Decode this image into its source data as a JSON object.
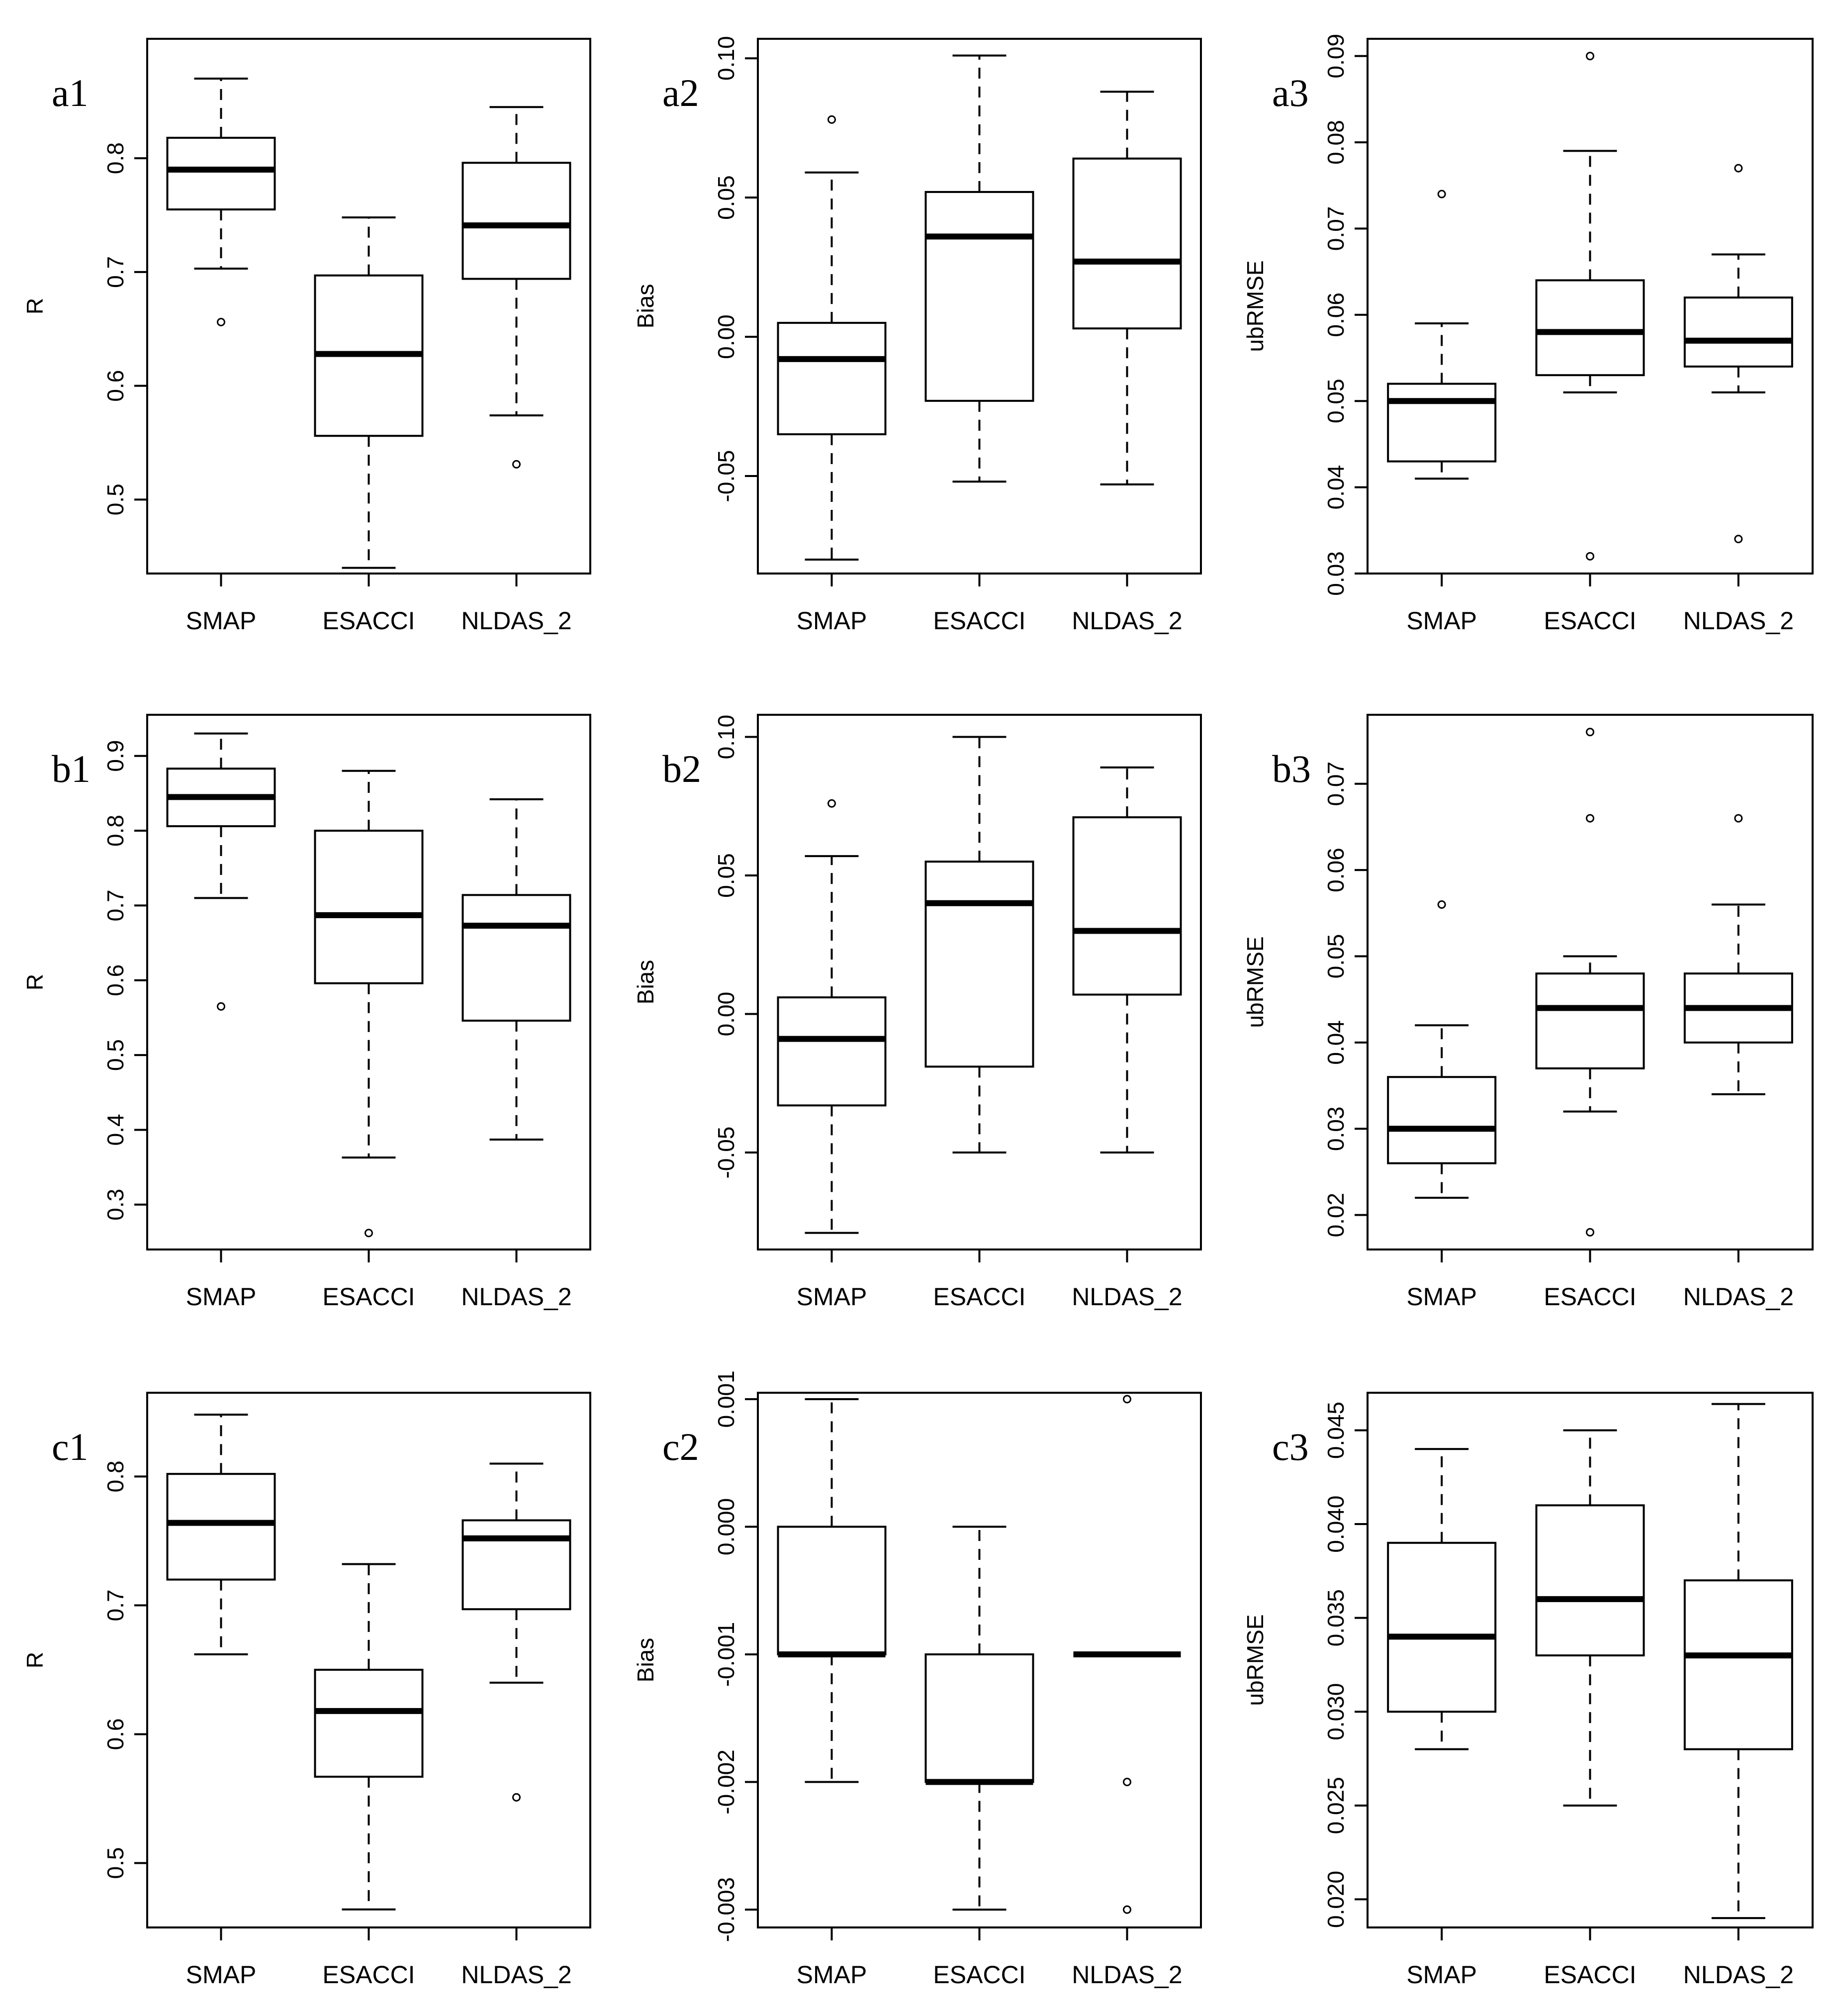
{
  "chart_data": [
    {
      "type": "boxplot",
      "panel_label": "a1",
      "ylabel": "R",
      "categories": [
        "SMAP",
        "ESACCI",
        "NLDAS_2"
      ],
      "ylim": [
        0.435,
        0.905
      ],
      "yticks": [
        "0.5",
        "0.6",
        "0.7",
        "0.8"
      ],
      "boxes": [
        {
          "whisker_low": 0.703,
          "q1": 0.755,
          "median": 0.79,
          "q3": 0.818,
          "whisker_high": 0.87,
          "outliers": [
            0.656
          ]
        },
        {
          "whisker_low": 0.44,
          "q1": 0.556,
          "median": 0.628,
          "q3": 0.697,
          "whisker_high": 0.748,
          "outliers": []
        },
        {
          "whisker_low": 0.574,
          "q1": 0.694,
          "median": 0.741,
          "q3": 0.796,
          "whisker_high": 0.845,
          "outliers": [
            0.531
          ]
        }
      ]
    },
    {
      "type": "boxplot",
      "panel_label": "a2",
      "ylabel": "Bias",
      "categories": [
        "SMAP",
        "ESACCI",
        "NLDAS_2"
      ],
      "ylim": [
        -0.085,
        0.107
      ],
      "yticks": [
        "-0.05",
        "0.00",
        "0.05",
        "0.10"
      ],
      "boxes": [
        {
          "whisker_low": -0.08,
          "q1": -0.035,
          "median": -0.008,
          "q3": 0.005,
          "whisker_high": 0.059,
          "outliers": [
            0.078
          ]
        },
        {
          "whisker_low": -0.052,
          "q1": -0.023,
          "median": 0.036,
          "q3": 0.052,
          "whisker_high": 0.101,
          "outliers": []
        },
        {
          "whisker_low": -0.053,
          "q1": 0.003,
          "median": 0.027,
          "q3": 0.064,
          "whisker_high": 0.088,
          "outliers": []
        }
      ]
    },
    {
      "type": "boxplot",
      "panel_label": "a3",
      "ylabel": "ubRMSE",
      "categories": [
        "SMAP",
        "ESACCI",
        "NLDAS_2"
      ],
      "ylim": [
        0.03,
        0.092
      ],
      "yticks": [
        "0.03",
        "0.04",
        "0.05",
        "0.06",
        "0.07",
        "0.08",
        "0.09"
      ],
      "boxes": [
        {
          "whisker_low": 0.041,
          "q1": 0.043,
          "median": 0.05,
          "q3": 0.052,
          "whisker_high": 0.059,
          "outliers": [
            0.074
          ]
        },
        {
          "whisker_low": 0.051,
          "q1": 0.053,
          "median": 0.058,
          "q3": 0.064,
          "whisker_high": 0.079,
          "outliers": [
            0.09,
            0.032
          ]
        },
        {
          "whisker_low": 0.051,
          "q1": 0.054,
          "median": 0.057,
          "q3": 0.062,
          "whisker_high": 0.067,
          "outliers": [
            0.077,
            0.034
          ]
        }
      ]
    },
    {
      "type": "boxplot",
      "panel_label": "b1",
      "ylabel": "R",
      "categories": [
        "SMAP",
        "ESACCI",
        "NLDAS_2"
      ],
      "ylim": [
        0.24,
        0.955
      ],
      "yticks": [
        "0.3",
        "0.4",
        "0.5",
        "0.6",
        "0.7",
        "0.8",
        "0.9"
      ],
      "boxes": [
        {
          "whisker_low": 0.71,
          "q1": 0.806,
          "median": 0.845,
          "q3": 0.883,
          "whisker_high": 0.93,
          "outliers": [
            0.565
          ]
        },
        {
          "whisker_low": 0.363,
          "q1": 0.596,
          "median": 0.687,
          "q3": 0.8,
          "whisker_high": 0.88,
          "outliers": [
            0.262
          ]
        },
        {
          "whisker_low": 0.387,
          "q1": 0.546,
          "median": 0.673,
          "q3": 0.714,
          "whisker_high": 0.842,
          "outliers": []
        }
      ]
    },
    {
      "type": "boxplot",
      "panel_label": "b2",
      "ylabel": "Bias",
      "categories": [
        "SMAP",
        "ESACCI",
        "NLDAS_2"
      ],
      "ylim": [
        -0.085,
        0.108
      ],
      "yticks": [
        "-0.05",
        "0.00",
        "0.05",
        "0.10"
      ],
      "boxes": [
        {
          "whisker_low": -0.079,
          "q1": -0.033,
          "median": -0.009,
          "q3": 0.006,
          "whisker_high": 0.057,
          "outliers": [
            0.076
          ]
        },
        {
          "whisker_low": -0.05,
          "q1": -0.019,
          "median": 0.04,
          "q3": 0.055,
          "whisker_high": 0.1,
          "outliers": []
        },
        {
          "whisker_low": -0.05,
          "q1": 0.007,
          "median": 0.03,
          "q3": 0.071,
          "whisker_high": 0.089,
          "outliers": []
        }
      ]
    },
    {
      "type": "boxplot",
      "panel_label": "b3",
      "ylabel": "ubRMSE",
      "categories": [
        "SMAP",
        "ESACCI",
        "NLDAS_2"
      ],
      "ylim": [
        0.016,
        0.078
      ],
      "yticks": [
        "0.02",
        "0.03",
        "0.04",
        "0.05",
        "0.06",
        "0.07"
      ],
      "boxes": [
        {
          "whisker_low": 0.022,
          "q1": 0.026,
          "median": 0.03,
          "q3": 0.036,
          "whisker_high": 0.042,
          "outliers": [
            0.056
          ]
        },
        {
          "whisker_low": 0.032,
          "q1": 0.037,
          "median": 0.044,
          "q3": 0.048,
          "whisker_high": 0.05,
          "outliers": [
            0.076,
            0.066,
            0.018
          ]
        },
        {
          "whisker_low": 0.034,
          "q1": 0.04,
          "median": 0.044,
          "q3": 0.048,
          "whisker_high": 0.056,
          "outliers": [
            0.066
          ]
        }
      ]
    },
    {
      "type": "boxplot",
      "panel_label": "c1",
      "ylabel": "R",
      "categories": [
        "SMAP",
        "ESACCI",
        "NLDAS_2"
      ],
      "ylim": [
        0.45,
        0.865
      ],
      "yticks": [
        "0.5",
        "0.6",
        "0.7",
        "0.8"
      ],
      "boxes": [
        {
          "whisker_low": 0.662,
          "q1": 0.72,
          "median": 0.764,
          "q3": 0.802,
          "whisker_high": 0.848,
          "outliers": []
        },
        {
          "whisker_low": 0.464,
          "q1": 0.567,
          "median": 0.618,
          "q3": 0.65,
          "whisker_high": 0.732,
          "outliers": []
        },
        {
          "whisker_low": 0.64,
          "q1": 0.697,
          "median": 0.752,
          "q3": 0.766,
          "whisker_high": 0.81,
          "outliers": [
            0.551
          ]
        }
      ]
    },
    {
      "type": "boxplot",
      "panel_label": "c2",
      "ylabel": "Bias",
      "categories": [
        "SMAP",
        "ESACCI",
        "NLDAS_2"
      ],
      "ylim": [
        -0.00314,
        0.00105
      ],
      "yticks": [
        "-0.003",
        "-0.002",
        "-0.001",
        "0.000",
        "0.001"
      ],
      "boxes": [
        {
          "whisker_low": -0.002,
          "q1": -0.001,
          "median": -0.001,
          "q3": 0.0,
          "whisker_high": 0.001,
          "outliers": []
        },
        {
          "whisker_low": -0.003,
          "q1": -0.002,
          "median": -0.002,
          "q3": -0.001,
          "whisker_high": 0.0,
          "outliers": []
        },
        {
          "whisker_low": -0.001,
          "q1": -0.001,
          "median": -0.001,
          "q3": -0.001,
          "whisker_high": -0.001,
          "outliers": [
            0.001,
            -0.002,
            -0.003
          ]
        }
      ]
    },
    {
      "type": "boxplot",
      "panel_label": "c3",
      "ylabel": "ubRMSE",
      "categories": [
        "SMAP",
        "ESACCI",
        "NLDAS_2"
      ],
      "ylim": [
        0.0185,
        0.047
      ],
      "yticks": [
        "0.020",
        "0.025",
        "0.030",
        "0.035",
        "0.040",
        "0.045"
      ],
      "boxes": [
        {
          "whisker_low": 0.028,
          "q1": 0.03,
          "median": 0.034,
          "q3": 0.039,
          "whisker_high": 0.044,
          "outliers": []
        },
        {
          "whisker_low": 0.025,
          "q1": 0.033,
          "median": 0.036,
          "q3": 0.041,
          "whisker_high": 0.045,
          "outliers": []
        },
        {
          "whisker_low": 0.019,
          "q1": 0.028,
          "median": 0.033,
          "q3": 0.037,
          "whisker_high": 0.0464,
          "outliers": []
        }
      ]
    }
  ]
}
